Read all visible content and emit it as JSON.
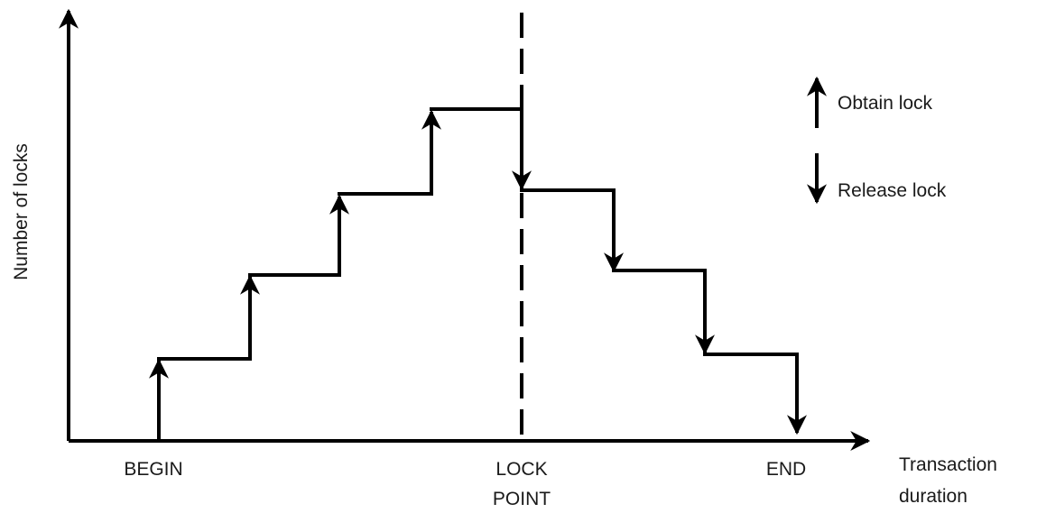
{
  "diagram": {
    "y_axis_label": "Number of locks",
    "x_axis_label_line1": "Transaction",
    "x_axis_label_line2": "duration",
    "begin_label": "BEGIN",
    "lock_point_label_line1": "LOCK",
    "lock_point_label_line2": "POINT",
    "end_label": "END",
    "legend": {
      "obtain_label": "Obtain lock",
      "release_label": "Release lock"
    }
  }
}
